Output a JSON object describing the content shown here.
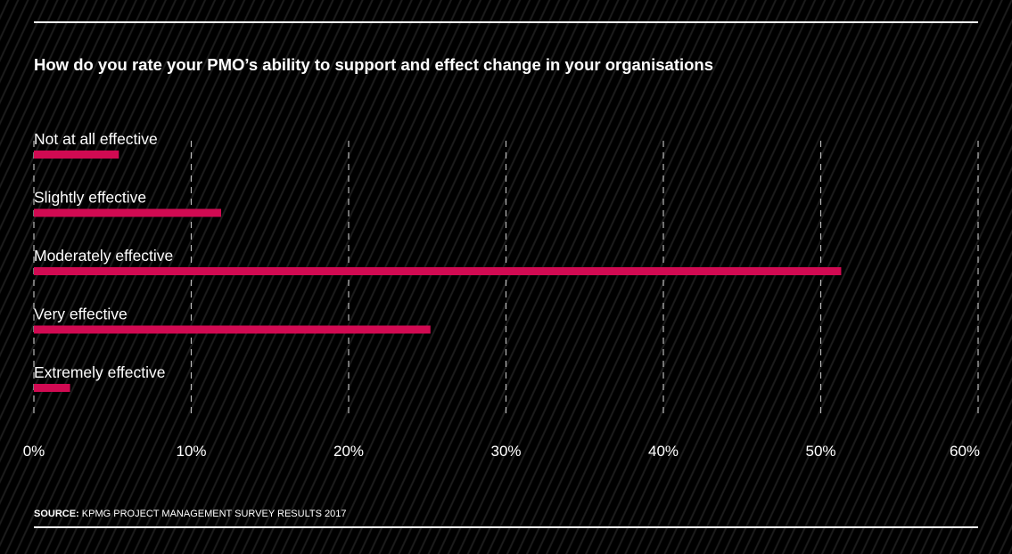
{
  "chart_data": {
    "type": "bar",
    "orientation": "horizontal",
    "title": "How do you rate your PMO’s ability to support and effect change in your organisations",
    "categories": [
      "Not at all effective",
      "Slightly effective",
      "Moderately effective",
      "Very effective",
      "Extremely effective"
    ],
    "values": [
      5.4,
      11.9,
      51.3,
      25.2,
      2.3
    ],
    "xlim": [
      0,
      60
    ],
    "xticks": [
      0,
      10,
      20,
      30,
      40,
      50,
      60
    ],
    "xtick_labels": [
      "0%",
      "10%",
      "20%",
      "30%",
      "40%",
      "50%",
      "60%"
    ],
    "grid": "vertical dashed",
    "bar_color": "#d10a52",
    "xlabel": "",
    "ylabel": ""
  },
  "source": {
    "label": "SOURCE:",
    "text": " KPMG PROJECT MANAGEMENT SURVEY RESULTS 2017"
  }
}
